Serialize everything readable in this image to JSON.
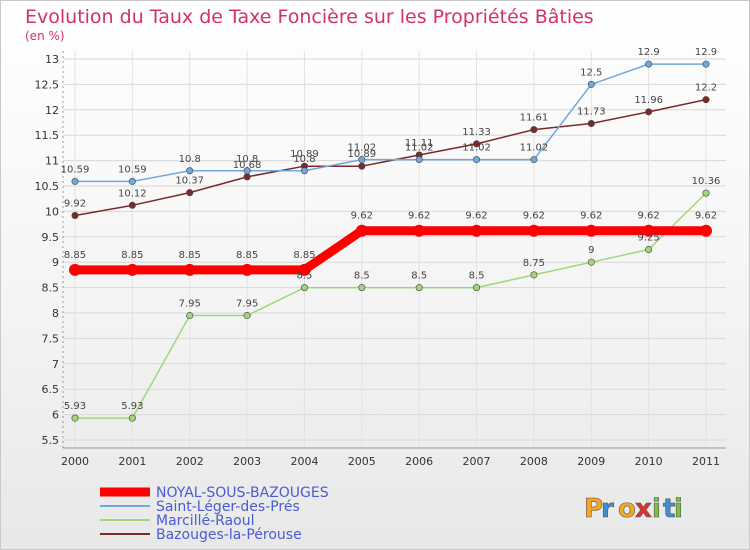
{
  "chart_data": {
    "type": "line",
    "title": "Evolution du Taux de Taxe Foncière sur les Propriétés Bâties",
    "subtitle": "(en %)",
    "categories": [
      "2000",
      "2001",
      "2002",
      "2003",
      "2004",
      "2005",
      "2006",
      "2007",
      "2008",
      "2009",
      "2010",
      "2011"
    ],
    "ylim": [
      5.5,
      13
    ],
    "yticks": [
      "5.5",
      "6",
      "6.5",
      "7",
      "7.5",
      "8",
      "8.5",
      "9",
      "9.5",
      "10",
      "10.5",
      "11",
      "11.5",
      "12",
      "12.5",
      "13"
    ],
    "grid": true,
    "legend_position": "bottom-left",
    "series": [
      {
        "name": "NOYAL-SOUS-BAZOUGES",
        "color": "#ff0000",
        "values": [
          8.85,
          8.85,
          8.85,
          8.85,
          8.85,
          9.62,
          9.62,
          9.62,
          9.62,
          9.62,
          9.62,
          9.62
        ],
        "labels": [
          "8.85",
          "8.85",
          "8.85",
          "8.85",
          "8.85",
          "9.62",
          "9.62",
          "9.62",
          "9.62",
          "9.62",
          "9.62",
          "9.62"
        ]
      },
      {
        "name": "Saint-Léger-des-Prés",
        "color": "#6fa8dc",
        "values": [
          10.59,
          10.59,
          10.8,
          10.8,
          10.8,
          11.02,
          11.02,
          11.02,
          11.02,
          12.5,
          12.9,
          12.9
        ],
        "labels": [
          "10.59",
          "10.59",
          "10.8",
          "10.8",
          "10.8",
          "11.02",
          "11.02",
          "11.02",
          "11.02",
          "12.5",
          "12.9",
          "12.9"
        ]
      },
      {
        "name": "Marcillé-Raoul",
        "color": "#9fd67a",
        "values": [
          5.93,
          5.93,
          7.95,
          7.95,
          8.5,
          8.5,
          8.5,
          8.5,
          8.75,
          9,
          9.25,
          10.36
        ],
        "labels": [
          "5.93",
          "5.93",
          "7.95",
          "7.95",
          "8.5",
          "8.5",
          "8.5",
          "8.5",
          "8.75",
          "9",
          "9.25",
          "10.36"
        ]
      },
      {
        "name": "Bazouges-la-Pérouse",
        "color": "#7a2a2a",
        "values": [
          9.92,
          10.12,
          10.37,
          10.68,
          10.89,
          10.89,
          11.11,
          11.33,
          11.61,
          11.73,
          11.96,
          12.2
        ],
        "labels": [
          "9.92",
          "10.12",
          "10.37",
          "10.68",
          "10.89",
          "10.89",
          "11.11",
          "11.33",
          "11.61",
          "11.73",
          "11.96",
          "12.2"
        ]
      }
    ]
  },
  "logo": {
    "text": [
      "P",
      "r",
      "o",
      "x",
      "i",
      "t",
      "i"
    ],
    "colors": [
      "#f5a623",
      "#3c8fd0",
      "#f5a623",
      "#e0302f",
      "#7cc242",
      "#3c8fd0",
      "#7cc242"
    ]
  }
}
